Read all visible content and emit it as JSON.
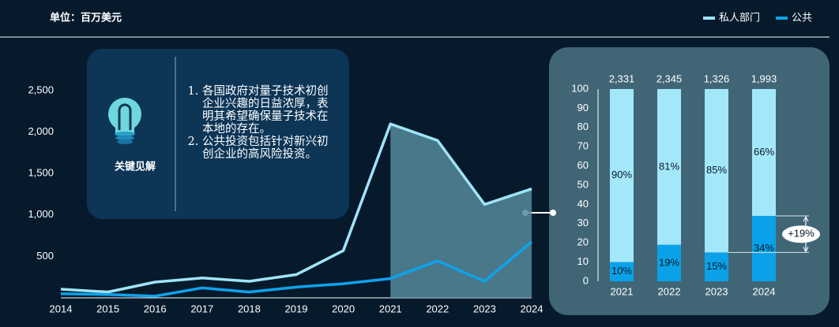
{
  "insight": {
    "title": "关键见解",
    "points": [
      "各国政府对量子技术初创企业兴趣的日益浓厚，表明其希望确保量子技术在本地的存在。",
      "公共投资包括针对新兴初创企业的高风险投资。"
    ]
  },
  "chart_data": [
    {
      "type": "line",
      "y_label": "单位：百万美元",
      "categories": [
        "2014",
        "2015",
        "2016",
        "2017",
        "2018",
        "2019",
        "2020",
        "2021",
        "2022",
        "2023",
        "2024"
      ],
      "series": [
        {
          "name": "私人部门",
          "color": "#9fe4f9",
          "values": [
            105,
            70,
            190,
            240,
            200,
            280,
            570,
            2098,
            1899,
            1127,
            1315
          ]
        },
        {
          "name": "公共",
          "color": "#0ea3ec",
          "values": [
            50,
            40,
            20,
            120,
            70,
            130,
            170,
            233,
            446,
            199,
            678
          ]
        }
      ],
      "ylim": [
        0,
        2500
      ],
      "yticks": [
        {
          "value": 500,
          "label": "500"
        },
        {
          "value": 1000,
          "label": "1,000"
        },
        {
          "value": 1500,
          "label": "1,500"
        },
        {
          "value": 2000,
          "label": "2,000"
        },
        {
          "value": 2500,
          "label": "2,500"
        }
      ],
      "highlight": {
        "from": "2021",
        "to": "2024",
        "color": "#56899c"
      }
    },
    {
      "type": "bar",
      "stacked": true,
      "categories": [
        "2021",
        "2022",
        "2023",
        "2024"
      ],
      "series": [
        {
          "color": "#0aa1e9",
          "values": [
            10,
            19,
            15,
            34
          ],
          "value_labels": [
            "10%",
            "19%",
            "15%",
            "34%"
          ]
        },
        {
          "color": "#a3e7fb",
          "values": [
            90,
            81,
            85,
            66
          ],
          "value_labels": [
            "90%",
            "81%",
            "85%",
            "66%"
          ]
        }
      ],
      "totals": {
        "values": [
          2331,
          2345,
          1326,
          1993
        ],
        "value_labels": [
          "2,331",
          "2,345",
          "1,326",
          "1,993"
        ]
      },
      "ylim": [
        0,
        100
      ],
      "yticks": [
        0,
        10,
        20,
        30,
        40,
        50,
        60,
        70,
        80,
        90,
        100
      ],
      "annotation": "+19%"
    }
  ]
}
